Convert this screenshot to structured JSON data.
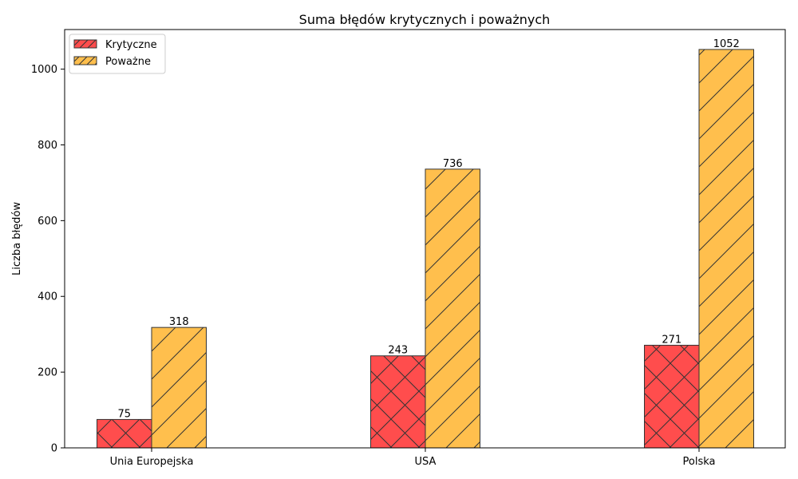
{
  "chart_data": {
    "type": "bar",
    "title": "Suma błędów krytycznych i poważnych",
    "xlabel": "",
    "ylabel": "Liczba błędów",
    "categories": [
      "Unia Europejska",
      "USA",
      "Polska"
    ],
    "series": [
      {
        "name": "Krytyczne",
        "values": [
          75,
          243,
          271
        ],
        "color": "#ff4d4d",
        "hatch": "cross-diagonal"
      },
      {
        "name": "Poważne",
        "values": [
          318,
          736,
          1052
        ],
        "color": "#ffbf4d",
        "hatch": "diagonal"
      }
    ],
    "ylim": [
      0,
      1104.6
    ],
    "yticks": [
      0,
      200,
      400,
      600,
      800,
      1000
    ],
    "grid": false,
    "legend": "top-left",
    "edge_color": "#333333"
  }
}
